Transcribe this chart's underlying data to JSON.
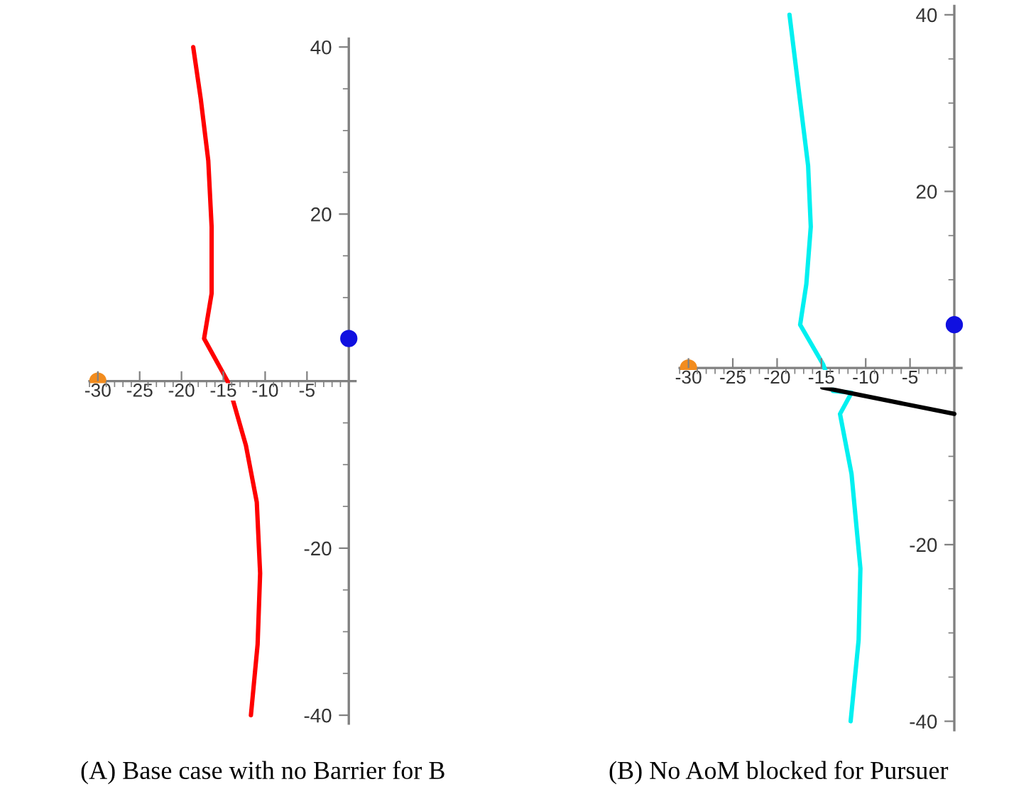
{
  "chart_data": [
    {
      "type": "line",
      "title": "(A) Base case with no Barrier for B",
      "xlim": [
        -31,
        0.8
      ],
      "ylim": [
        -41,
        41
      ],
      "xticks": [
        -30,
        -25,
        -20,
        -15,
        -10,
        -5
      ],
      "yticks": [
        -40,
        -20,
        20,
        40
      ],
      "grid": false,
      "legend": false,
      "series": [
        {
          "color": "#ff0000",
          "x": [
            -18.6,
            -17.7,
            -16.8,
            -16.4,
            -16.4,
            -17.3,
            -14.5,
            -12.3,
            -11.0,
            -10.6,
            -10.9,
            -11.7
          ],
          "values": [
            40,
            33.8,
            26.4,
            18.5,
            10.5,
            5.1,
            0,
            -7.7,
            -14.5,
            -23,
            -31.5,
            -40
          ]
        },
        {
          "type": "scatter",
          "color": "#1010e0",
          "x": [
            0
          ],
          "values": [
            5.1
          ]
        },
        {
          "type": "scatter",
          "color": "#f28c1e",
          "x": [
            -30
          ],
          "values": [
            0
          ]
        }
      ]
    },
    {
      "type": "line",
      "title": "(B) No AoM blocked for Pursuer",
      "xlim": [
        -31,
        0.8
      ],
      "ylim": [
        -41,
        41
      ],
      "xticks": [
        -30,
        -25,
        -20,
        -15,
        -10,
        -5
      ],
      "yticks": [
        -40,
        -20,
        20,
        40
      ],
      "grid": false,
      "legend": false,
      "series": [
        {
          "color": "#00f0f0",
          "x": [
            -18.6,
            -17.5,
            -16.5,
            -16.2,
            -16.7,
            -17.4,
            -14.8,
            -13.7,
            -11.6,
            -12.9,
            -11.6,
            -10.6,
            -10.8,
            -11.7
          ],
          "values": [
            40,
            31,
            22.9,
            16,
            9.5,
            4.9,
            0.4,
            -2.6,
            -2.8,
            -5.2,
            -12,
            -22.7,
            -30.8,
            -40
          ]
        },
        {
          "color": "#000000",
          "x": [
            -14.9,
            0
          ],
          "values": [
            -2.2,
            -5.2
          ]
        },
        {
          "type": "scatter",
          "color": "#1010e0",
          "x": [
            0
          ],
          "values": [
            4.9
          ]
        },
        {
          "type": "scatter",
          "color": "#f28c1e",
          "x": [
            -30
          ],
          "values": [
            0
          ]
        }
      ]
    }
  ]
}
